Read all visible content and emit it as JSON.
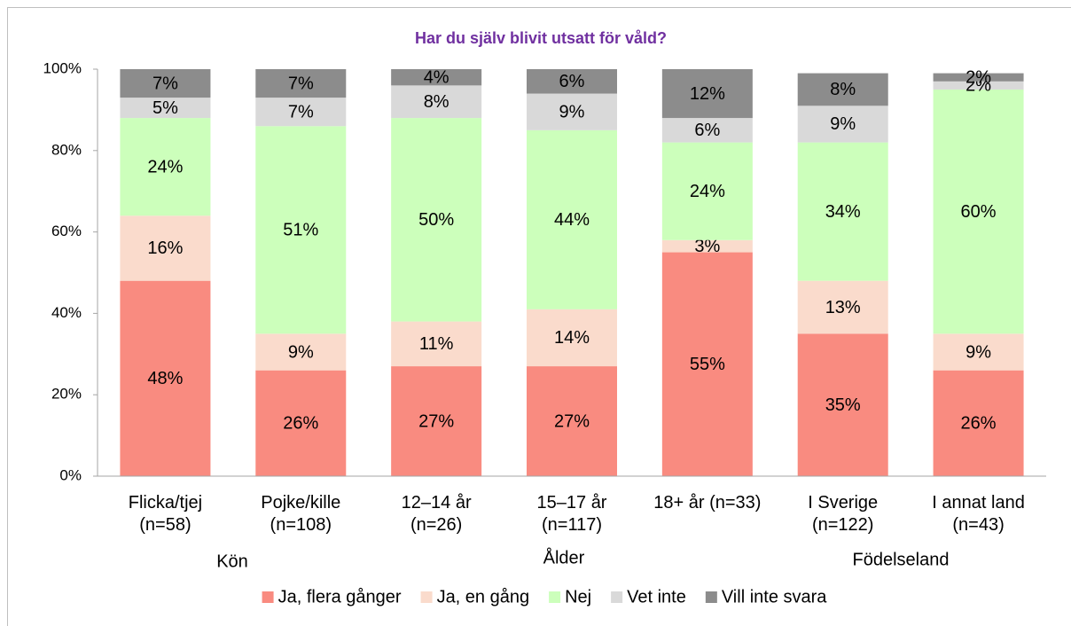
{
  "chart_data": {
    "type": "stacked_bar",
    "title": "Har du själv blivit utsatt för våld?",
    "categories": [
      [
        "Flicka/tjej",
        "(n=58)"
      ],
      [
        "Pojke/kille",
        "(n=108)"
      ],
      [
        "12–14 år",
        "(n=26)"
      ],
      [
        "15–17 år",
        "(n=117)"
      ],
      [
        "18+ år (n=33)"
      ],
      [
        "I Sverige",
        "(n=122)"
      ],
      [
        "I annat land",
        "(n=43)"
      ]
    ],
    "group_labels": [
      "Kön",
      "Ålder",
      "Födelseland"
    ],
    "series": [
      {
        "name": "Ja, flera gånger",
        "color": "#f98b80",
        "values": [
          48,
          26,
          27,
          27,
          55,
          35,
          26
        ],
        "value_labels": [
          "48%",
          "26%",
          "27%",
          "27%",
          "55%",
          "35%",
          "26%"
        ]
      },
      {
        "name": "Ja, en gång",
        "color": "#fadbcc",
        "values": [
          16,
          9,
          11,
          14,
          3,
          13,
          9
        ],
        "value_labels": [
          "16%",
          "9%",
          "11%",
          "14%",
          "3%",
          "13%",
          "9%"
        ]
      },
      {
        "name": "Nej",
        "color": "#ccffbb",
        "values": [
          24,
          51,
          50,
          44,
          24,
          34,
          60
        ],
        "value_labels": [
          "24%",
          "51%",
          "50%",
          "44%",
          "24%",
          "34%",
          "60%"
        ]
      },
      {
        "name": "Vet inte",
        "color": "#d9d9d9",
        "values": [
          5,
          7,
          8,
          9,
          6,
          9,
          2
        ],
        "value_labels": [
          "5%",
          "7%",
          "8%",
          "9%",
          "6%",
          "9%",
          "2%"
        ]
      },
      {
        "name": "Vill inte svara",
        "color": "#8c8c8c",
        "values": [
          7,
          7,
          4,
          6,
          12,
          8,
          2
        ],
        "value_labels": [
          "7%",
          "7%",
          "4%",
          "6%",
          "12%",
          "8%",
          "2%"
        ]
      }
    ],
    "ylim": [
      0,
      100
    ],
    "yticks": [
      {
        "value": 0,
        "label": "0%"
      },
      {
        "value": 20,
        "label": "20%"
      },
      {
        "value": 40,
        "label": "40%"
      },
      {
        "value": 60,
        "label": "60%"
      },
      {
        "value": 80,
        "label": "80%"
      },
      {
        "value": 100,
        "label": "100%"
      }
    ],
    "legend": "bottom"
  }
}
